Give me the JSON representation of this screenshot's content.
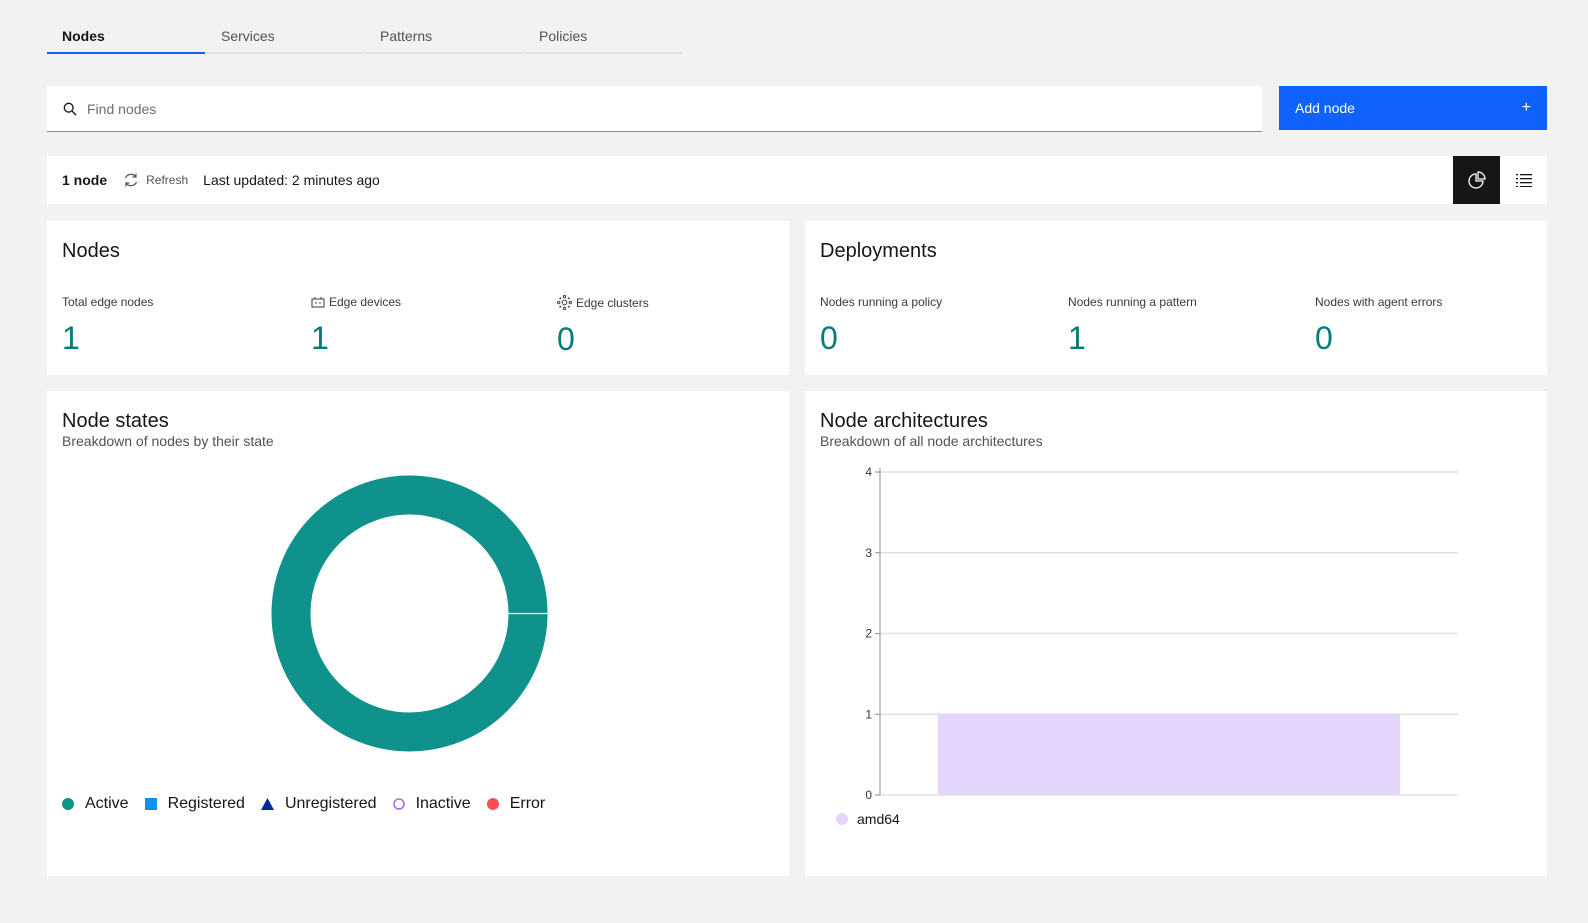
{
  "tabs": [
    {
      "label": "Nodes",
      "active": true
    },
    {
      "label": "Services",
      "active": false
    },
    {
      "label": "Patterns",
      "active": false
    },
    {
      "label": "Policies",
      "active": false
    }
  ],
  "search": {
    "placeholder": "Find nodes",
    "icon": "search-icon"
  },
  "add_node": {
    "label": "Add node",
    "icon": "add-icon",
    "color": "#0f62fe"
  },
  "toolbar": {
    "count": "1 node",
    "refresh_label": "Refresh",
    "last_updated": "Last updated: 2 minutes ago",
    "views": [
      "chart-view-icon",
      "list-view-icon"
    ]
  },
  "nodes_tile": {
    "title": "Nodes",
    "metrics": [
      {
        "label": "Total edge nodes",
        "value": "1",
        "icon": null
      },
      {
        "label": "Edge devices",
        "value": "1",
        "icon": "edge-device-icon"
      },
      {
        "label": "Edge clusters",
        "value": "0",
        "icon": "edge-cluster-icon"
      }
    ]
  },
  "deployments_tile": {
    "title": "Deployments",
    "metrics": [
      {
        "label": "Nodes running a policy",
        "value": "0"
      },
      {
        "label": "Nodes running a pattern",
        "value": "1"
      },
      {
        "label": "Nodes with agent errors",
        "value": "0"
      }
    ]
  },
  "node_states": {
    "title": "Node states",
    "subtitle": "Breakdown of nodes by their state",
    "legend": [
      {
        "label": "Active",
        "color": "#0f918c",
        "shape": "circle"
      },
      {
        "label": "Registered",
        "color": "#1192e8",
        "shape": "square"
      },
      {
        "label": "Unregistered",
        "color": "#002d9c",
        "shape": "triangle"
      },
      {
        "label": "Inactive",
        "color": "#a56eff",
        "shape": "ring"
      },
      {
        "label": "Error",
        "color": "#fa4d56",
        "shape": "circle"
      }
    ]
  },
  "node_architectures": {
    "title": "Node architectures",
    "subtitle": "Breakdown of all node architectures",
    "legend": [
      {
        "label": "amd64",
        "color": "#e3d6fa"
      }
    ]
  },
  "chart_data": [
    {
      "type": "pie",
      "title": "Node states",
      "labels": [
        "Active",
        "Registered",
        "Unregistered",
        "Inactive",
        "Error"
      ],
      "values": [
        1,
        0,
        0,
        0,
        0
      ],
      "colors": [
        "#0f918c",
        "#1192e8",
        "#002d9c",
        "#a56eff",
        "#fa4d56"
      ]
    },
    {
      "type": "bar",
      "title": "Node architectures",
      "categories": [
        "amd64"
      ],
      "values": [
        1
      ],
      "ylim": [
        0,
        4
      ],
      "yticks": [
        0,
        1,
        2,
        3,
        4
      ],
      "grid": true,
      "legend": "bottom-left",
      "color": "#e3d6fa"
    }
  ]
}
